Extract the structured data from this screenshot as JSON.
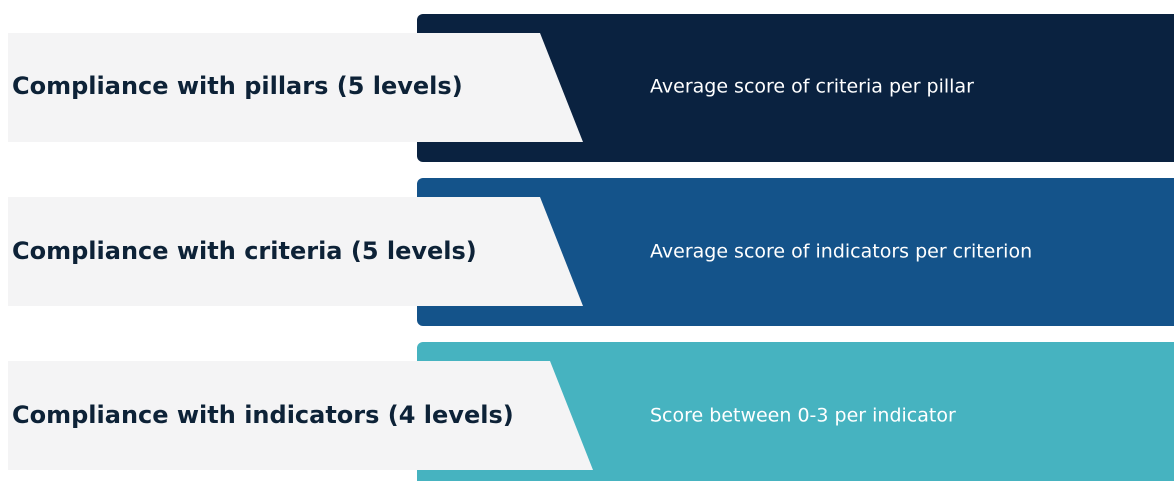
{
  "rows": [
    {
      "label": "Compliance with pillars (5 levels)",
      "description": "Average score of criteria per pillar"
    },
    {
      "label": "Compliance with criteria (5 levels)",
      "description": "Average score of indicators per criterion"
    },
    {
      "label": "Compliance with indicators (4 levels)",
      "description": "Score between 0-3 per indicator"
    }
  ]
}
